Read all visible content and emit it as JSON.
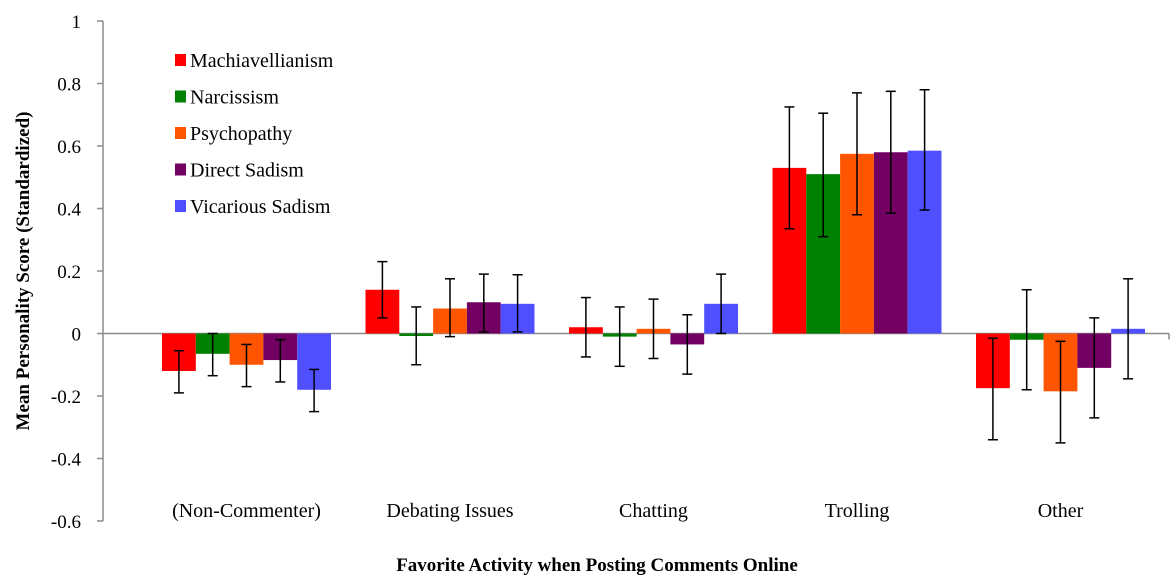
{
  "chart_data": {
    "type": "bar",
    "title": "",
    "xlabel": "Favorite Activity when Posting Comments Online",
    "ylabel": "Mean Personality Score (Standardized)",
    "ylim": [
      -0.6,
      1
    ],
    "yticks": [
      1,
      0.8,
      0.6,
      0.4,
      0.2,
      0,
      -0.2,
      -0.4,
      -0.6
    ],
    "ytick_labels": [
      "1",
      "0.8",
      "0.6",
      "0.4",
      "0.2",
      "0",
      "-0.2",
      "-0.4",
      "-0.6"
    ],
    "grid": false,
    "legend_position": "top-left",
    "categories": [
      "(Non-Commenter)",
      "Debating Issues",
      "Chatting",
      "Trolling",
      "Other"
    ],
    "series": [
      {
        "name": "Machiavellianism",
        "color": "#FF0000",
        "values": [
          -0.12,
          0.14,
          0.02,
          0.53,
          -0.175
        ],
        "error_low": [
          -0.19,
          0.05,
          -0.075,
          0.335,
          -0.34
        ],
        "error_high": [
          -0.055,
          0.23,
          0.115,
          0.725,
          -0.015
        ]
      },
      {
        "name": "Narcissism",
        "color": "#008000",
        "values": [
          -0.065,
          -0.008,
          -0.01,
          0.51,
          -0.02
        ],
        "error_low": [
          -0.135,
          -0.1,
          -0.105,
          0.31,
          -0.18
        ],
        "error_high": [
          0.0,
          0.085,
          0.085,
          0.705,
          0.14
        ]
      },
      {
        "name": "Psychopathy",
        "color": "#FF5500",
        "values": [
          -0.1,
          0.08,
          0.015,
          0.575,
          -0.185
        ],
        "error_low": [
          -0.17,
          -0.01,
          -0.08,
          0.38,
          -0.35
        ],
        "error_high": [
          -0.035,
          0.175,
          0.11,
          0.77,
          -0.025
        ]
      },
      {
        "name": "Direct Sadism",
        "color": "#720062",
        "values": [
          -0.085,
          0.1,
          -0.035,
          0.58,
          -0.11
        ],
        "error_low": [
          -0.155,
          0.005,
          -0.13,
          0.385,
          -0.27
        ],
        "error_high": [
          -0.02,
          0.19,
          0.06,
          0.775,
          0.05
        ]
      },
      {
        "name": "Vicarious Sadism",
        "color": "#4F4FFF",
        "values": [
          -0.18,
          0.095,
          0.095,
          0.585,
          0.015
        ],
        "error_low": [
          -0.25,
          0.005,
          0.0,
          0.395,
          -0.145
        ],
        "error_high": [
          -0.115,
          0.188,
          0.19,
          0.78,
          0.175
        ]
      }
    ]
  }
}
